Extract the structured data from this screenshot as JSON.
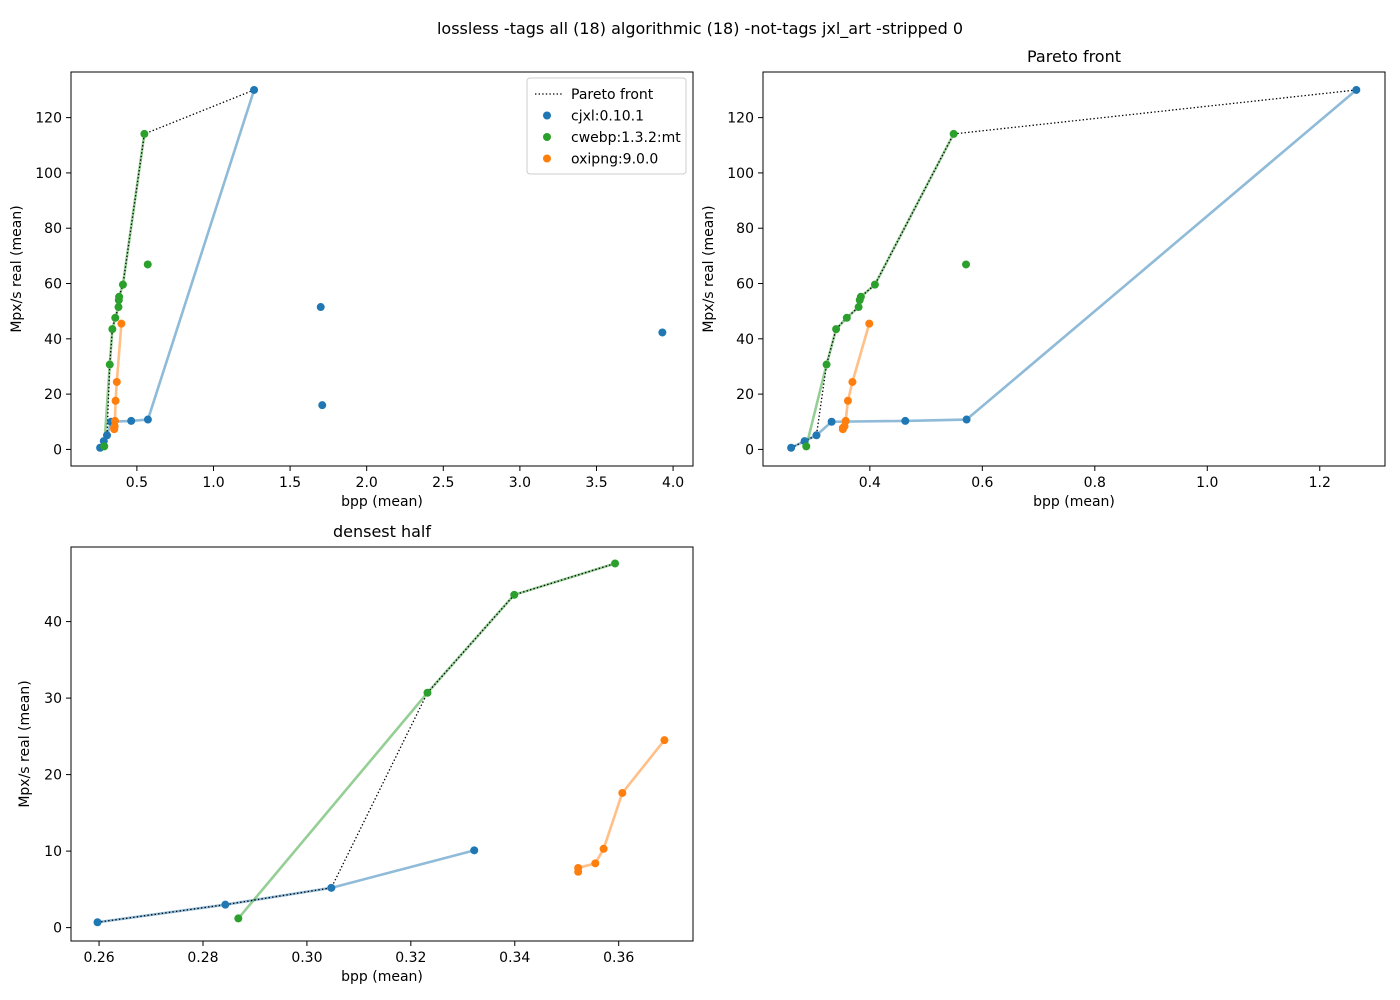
{
  "figure": {
    "suptitle": "lossless -tags all (18) algorithmic (18) -not-tags jxl_art -stripped 0"
  },
  "colors": {
    "cjxl": "#1f77b4",
    "cwebp": "#2ca02c",
    "oxipng": "#ff7f0e",
    "pareto": "#000000"
  },
  "legend": {
    "placement": "upper right of first panel",
    "items": [
      {
        "label": "Pareto front",
        "kind": "dotted-line",
        "color": "#000000"
      },
      {
        "label": "cjxl:0.10.1",
        "kind": "marker",
        "color": "#1f77b4"
      },
      {
        "label": "cwebp:1.3.2:mt",
        "kind": "marker",
        "color": "#2ca02c"
      },
      {
        "label": "oxipng:9.0.0",
        "kind": "marker",
        "color": "#ff7f0e"
      }
    ]
  },
  "chart_data": [
    {
      "id": "all",
      "type": "scatter",
      "title": "",
      "xlabel": "bpp (mean)",
      "ylabel": "Mpx/s real (mean)",
      "xlim": [
        0.07,
        4.13
      ],
      "ylim": [
        -6.0,
        136.5
      ],
      "xticks": [
        0.5,
        1.0,
        1.5,
        2.0,
        2.5,
        3.0,
        3.5,
        4.0
      ],
      "xtick_labels": [
        "0.5",
        "1.0",
        "1.5",
        "2.0",
        "2.5",
        "3.0",
        "3.5",
        "4.0"
      ],
      "yticks": [
        0,
        20,
        40,
        60,
        80,
        100,
        120
      ],
      "ytick_labels": [
        "0",
        "20",
        "40",
        "60",
        "80",
        "100",
        "120"
      ],
      "grid": false,
      "has_legend": true,
      "series": [
        {
          "name": "cjxl:0.10.1",
          "color": "#1f77b4",
          "points": [
            [
              0.26,
              0.6
            ],
            [
              0.284,
              3.0
            ],
            [
              0.305,
              5.1
            ],
            [
              0.332,
              10.0
            ],
            [
              0.463,
              10.3
            ],
            [
              0.572,
              10.8
            ],
            [
              1.265,
              130.0
            ],
            [
              1.7,
              51.5
            ],
            [
              1.71,
              16.0
            ],
            [
              3.93,
              42.3
            ]
          ],
          "line": [
            [
              0.26,
              0.6
            ],
            [
              0.284,
              3.0
            ],
            [
              0.305,
              5.1
            ],
            [
              0.332,
              10.0
            ],
            [
              0.463,
              10.3
            ],
            [
              0.572,
              10.8
            ],
            [
              1.265,
              130.0
            ]
          ]
        },
        {
          "name": "cwebp:1.3.2:mt",
          "color": "#2ca02c",
          "points": [
            [
              0.287,
              1.1
            ],
            [
              0.323,
              30.7
            ],
            [
              0.34,
              43.5
            ],
            [
              0.359,
              47.6
            ],
            [
              0.38,
              51.5
            ],
            [
              0.382,
              54.0
            ],
            [
              0.384,
              55.2
            ],
            [
              0.409,
              59.6
            ],
            [
              0.549,
              114.1
            ],
            [
              0.571,
              66.9
            ]
          ],
          "line": [
            [
              0.287,
              1.1
            ],
            [
              0.323,
              30.7
            ],
            [
              0.34,
              43.5
            ],
            [
              0.359,
              47.6
            ],
            [
              0.38,
              51.5
            ],
            [
              0.382,
              54.0
            ],
            [
              0.384,
              55.2
            ],
            [
              0.409,
              59.6
            ],
            [
              0.549,
              114.1
            ]
          ]
        },
        {
          "name": "oxipng:9.0.0",
          "color": "#ff7f0e",
          "points": [
            [
              0.352,
              7.3
            ],
            [
              0.352,
              7.8
            ],
            [
              0.355,
              8.4
            ],
            [
              0.357,
              10.3
            ],
            [
              0.361,
              17.6
            ],
            [
              0.369,
              24.4
            ],
            [
              0.399,
              45.5
            ]
          ],
          "line": [
            [
              0.352,
              7.3
            ],
            [
              0.352,
              7.8
            ],
            [
              0.355,
              8.4
            ],
            [
              0.357,
              10.3
            ],
            [
              0.361,
              17.6
            ],
            [
              0.369,
              24.4
            ],
            [
              0.399,
              45.5
            ]
          ]
        }
      ],
      "pareto": [
        [
          0.26,
          0.6
        ],
        [
          0.284,
          3.0
        ],
        [
          0.305,
          5.1
        ],
        [
          0.323,
          30.7
        ],
        [
          0.34,
          43.5
        ],
        [
          0.359,
          47.6
        ],
        [
          0.38,
          51.5
        ],
        [
          0.382,
          54.0
        ],
        [
          0.384,
          55.2
        ],
        [
          0.409,
          59.6
        ],
        [
          0.549,
          114.1
        ],
        [
          1.265,
          130.0
        ]
      ]
    },
    {
      "id": "pareto",
      "type": "scatter",
      "title": "Pareto front",
      "xlabel": "bpp (mean)",
      "ylabel": "Mpx/s real (mean)",
      "xlim": [
        0.21,
        1.316
      ],
      "ylim": [
        -6.0,
        136.5
      ],
      "xticks": [
        0.4,
        0.6,
        0.8,
        1.0,
        1.2
      ],
      "xtick_labels": [
        "0.4",
        "0.6",
        "0.8",
        "1.0",
        "1.2"
      ],
      "yticks": [
        0,
        20,
        40,
        60,
        80,
        100,
        120
      ],
      "ytick_labels": [
        "0",
        "20",
        "40",
        "60",
        "80",
        "100",
        "120"
      ],
      "grid": false,
      "has_legend": false,
      "series": [
        {
          "name": "cjxl:0.10.1",
          "color": "#1f77b4",
          "points": [
            [
              0.26,
              0.6
            ],
            [
              0.284,
              3.0
            ],
            [
              0.305,
              5.1
            ],
            [
              0.332,
              10.0
            ],
            [
              0.463,
              10.3
            ],
            [
              0.572,
              10.8
            ],
            [
              1.265,
              130.0
            ]
          ],
          "line": [
            [
              0.26,
              0.6
            ],
            [
              0.284,
              3.0
            ],
            [
              0.305,
              5.1
            ],
            [
              0.332,
              10.0
            ],
            [
              0.463,
              10.3
            ],
            [
              0.572,
              10.8
            ],
            [
              1.265,
              130.0
            ]
          ]
        },
        {
          "name": "cwebp:1.3.2:mt",
          "color": "#2ca02c",
          "points": [
            [
              0.287,
              1.1
            ],
            [
              0.323,
              30.7
            ],
            [
              0.34,
              43.5
            ],
            [
              0.359,
              47.6
            ],
            [
              0.38,
              51.5
            ],
            [
              0.382,
              54.0
            ],
            [
              0.384,
              55.2
            ],
            [
              0.409,
              59.6
            ],
            [
              0.549,
              114.1
            ],
            [
              0.571,
              66.9
            ]
          ],
          "line": [
            [
              0.287,
              1.1
            ],
            [
              0.323,
              30.7
            ],
            [
              0.34,
              43.5
            ],
            [
              0.359,
              47.6
            ],
            [
              0.38,
              51.5
            ],
            [
              0.382,
              54.0
            ],
            [
              0.384,
              55.2
            ],
            [
              0.409,
              59.6
            ],
            [
              0.549,
              114.1
            ]
          ]
        },
        {
          "name": "oxipng:9.0.0",
          "color": "#ff7f0e",
          "points": [
            [
              0.352,
              7.3
            ],
            [
              0.352,
              7.8
            ],
            [
              0.355,
              8.4
            ],
            [
              0.357,
              10.3
            ],
            [
              0.361,
              17.6
            ],
            [
              0.369,
              24.4
            ],
            [
              0.399,
              45.5
            ]
          ],
          "line": [
            [
              0.352,
              7.3
            ],
            [
              0.352,
              7.8
            ],
            [
              0.355,
              8.4
            ],
            [
              0.357,
              10.3
            ],
            [
              0.361,
              17.6
            ],
            [
              0.369,
              24.4
            ],
            [
              0.399,
              45.5
            ]
          ]
        }
      ],
      "pareto": [
        [
          0.26,
          0.6
        ],
        [
          0.284,
          3.0
        ],
        [
          0.305,
          5.1
        ],
        [
          0.323,
          30.7
        ],
        [
          0.34,
          43.5
        ],
        [
          0.359,
          47.6
        ],
        [
          0.38,
          51.5
        ],
        [
          0.382,
          54.0
        ],
        [
          0.384,
          55.2
        ],
        [
          0.409,
          59.6
        ],
        [
          0.549,
          114.1
        ],
        [
          1.265,
          130.0
        ]
      ]
    },
    {
      "id": "densest",
      "type": "scatter",
      "title": "densest half",
      "xlabel": "bpp (mean)",
      "ylabel": "Mpx/s real (mean)",
      "xlim": [
        0.2546,
        0.3743
      ],
      "ylim": [
        -1.75,
        49.75
      ],
      "xticks": [
        0.26,
        0.28,
        0.3,
        0.32,
        0.34,
        0.36
      ],
      "xtick_labels": [
        "0.26",
        "0.28",
        "0.30",
        "0.32",
        "0.34",
        "0.36"
      ],
      "yticks": [
        0,
        10,
        20,
        30,
        40
      ],
      "ytick_labels": [
        "0",
        "10",
        "20",
        "30",
        "40"
      ],
      "grid": false,
      "has_legend": false,
      "series": [
        {
          "name": "cjxl:0.10.1",
          "color": "#1f77b4",
          "points": [
            [
              0.2597,
              0.7
            ],
            [
              0.2843,
              3.0
            ],
            [
              0.3047,
              5.2
            ],
            [
              0.3322,
              10.1
            ]
          ],
          "line": [
            [
              0.2597,
              0.7
            ],
            [
              0.2843,
              3.0
            ],
            [
              0.3047,
              5.2
            ],
            [
              0.3322,
              10.1
            ]
          ]
        },
        {
          "name": "cwebp:1.3.2:mt",
          "color": "#2ca02c",
          "points": [
            [
              0.2868,
              1.2
            ],
            [
              0.3232,
              30.7
            ],
            [
              0.3399,
              43.5
            ],
            [
              0.3593,
              47.6
            ]
          ],
          "line": [
            [
              0.2868,
              1.2
            ],
            [
              0.3232,
              30.7
            ],
            [
              0.3399,
              43.5
            ],
            [
              0.3593,
              47.6
            ]
          ]
        },
        {
          "name": "oxipng:9.0.0",
          "color": "#ff7f0e",
          "points": [
            [
              0.3522,
              7.3
            ],
            [
              0.3522,
              7.8
            ],
            [
              0.3555,
              8.4
            ],
            [
              0.3571,
              10.3
            ],
            [
              0.3607,
              17.6
            ],
            [
              0.3688,
              24.5
            ]
          ],
          "line": [
            [
              0.3522,
              7.3
            ],
            [
              0.3522,
              7.8
            ],
            [
              0.3555,
              8.4
            ],
            [
              0.3571,
              10.3
            ],
            [
              0.3607,
              17.6
            ],
            [
              0.3688,
              24.5
            ]
          ]
        }
      ],
      "pareto": [
        [
          0.2597,
          0.7
        ],
        [
          0.2843,
          3.0
        ],
        [
          0.3047,
          5.2
        ],
        [
          0.3232,
          30.7
        ],
        [
          0.3399,
          43.5
        ],
        [
          0.3593,
          47.6
        ]
      ]
    }
  ]
}
